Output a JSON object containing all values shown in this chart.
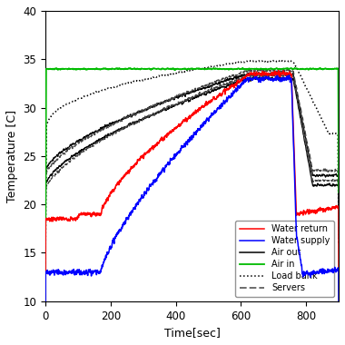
{
  "title": "",
  "xlabel": "Time[sec]",
  "ylabel": "Temperature [C]",
  "xlim": [
    0,
    900
  ],
  "ylim": [
    10,
    40
  ],
  "xticks": [
    0,
    200,
    400,
    600,
    800
  ],
  "yticks": [
    10,
    15,
    20,
    25,
    30,
    35,
    40
  ],
  "legend_entries": [
    "Water return",
    "Water supply",
    "Air out",
    "Air in",
    "Load bank",
    "Servers"
  ],
  "figsize": [
    3.8,
    3.8
  ],
  "dpi": 100,
  "water_return_color": "#ff0000",
  "water_supply_color": "#0000ff",
  "air_out_color": "#000000",
  "air_in_color": "#00aa00",
  "load_bank_color": "#000000",
  "servers_color": "#555555"
}
